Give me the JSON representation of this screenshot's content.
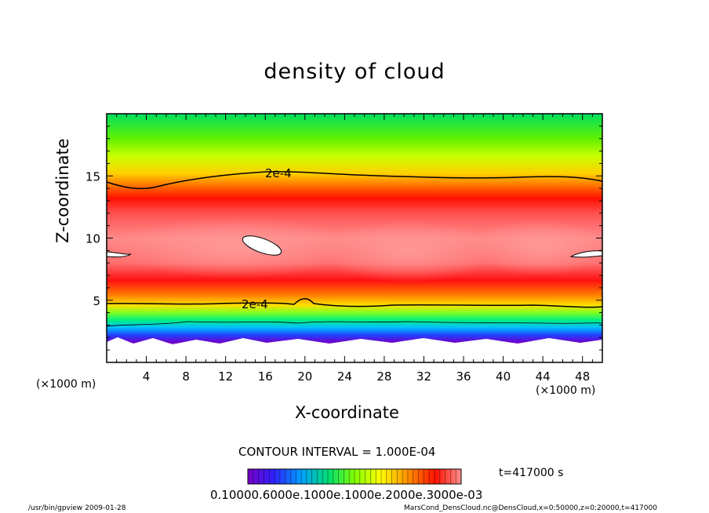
{
  "chart_data": {
    "type": "heatmap",
    "title": "density of cloud",
    "xlabel": "X-coordinate",
    "ylabel": "Z-coordinate",
    "x_unit_label": "(×1000 m)",
    "x_ticks": [
      4,
      8,
      12,
      16,
      20,
      24,
      28,
      32,
      36,
      40,
      44,
      48
    ],
    "y_ticks": [
      5,
      10,
      15
    ],
    "xlim": [
      0,
      50
    ],
    "ylim": [
      0,
      20
    ],
    "contour_levels": [
      {
        "label": "2e-4",
        "z_upper": 15.2,
        "z_lower": 4.7
      }
    ],
    "contour_interval": "CONTOUR INTERVAL = 1.000E-04",
    "time_label": "t=417000 s",
    "colorbar_labels": "0.10000.6000e.1000e.1000e.2000e.3000e-03",
    "colormap": [
      "#7a00c8",
      "#2030ff",
      "#00c8ff",
      "#00e060",
      "#80ff00",
      "#ffff00",
      "#ff8000",
      "#ff0000",
      "#ff9090"
    ],
    "footer_left": "/usr/bin/gpview   2009-01-28",
    "footer_right": "MarsCond_DensCloud.nc@DensCloud,x=0:50000,z=0:20000,t=417000"
  }
}
